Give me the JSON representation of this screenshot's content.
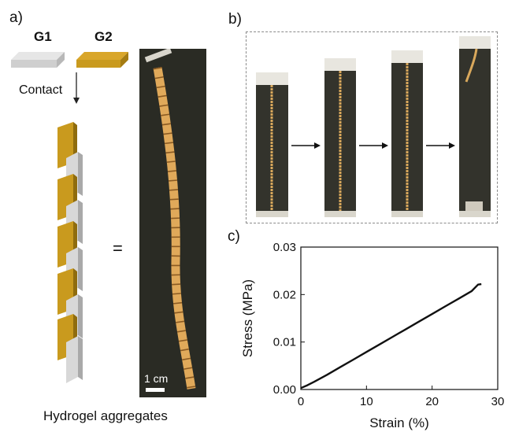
{
  "panel_a": {
    "label": "a)",
    "g1_label": "G1",
    "g2_label": "G2",
    "contact_label": "Contact",
    "equals_symbol": "=",
    "scale_bar_label": "1 cm",
    "caption": "Hydrogel aggregates",
    "colors": {
      "g1": "#d6d6d6",
      "g2": "#c99a1e",
      "photo_bg": "#2a2b24",
      "hydrogel": "#e0a95a"
    }
  },
  "panel_b": {
    "label": "b)",
    "frame_count": 4
  },
  "panel_c": {
    "label": "c)"
  },
  "chart_data": {
    "type": "line",
    "xlabel": "Strain (%)",
    "ylabel": "Stress (MPa)",
    "xlim": [
      0,
      30
    ],
    "ylim": [
      0,
      0.03
    ],
    "xticks": [
      "0",
      "10",
      "20",
      "30"
    ],
    "yticks": [
      "0.00",
      "0.01",
      "0.02",
      "0.03"
    ],
    "grid": false,
    "series": [
      {
        "x": [
          0,
          1,
          2,
          4,
          6,
          8,
          10,
          12,
          14,
          16,
          18,
          20,
          22,
          24,
          26,
          27,
          27.5
        ],
        "y": [
          0.0003,
          0.0009,
          0.0016,
          0.0031,
          0.0047,
          0.0063,
          0.0079,
          0.0095,
          0.0111,
          0.0127,
          0.0143,
          0.0159,
          0.0175,
          0.0191,
          0.0207,
          0.0221,
          0.0222
        ]
      }
    ]
  }
}
